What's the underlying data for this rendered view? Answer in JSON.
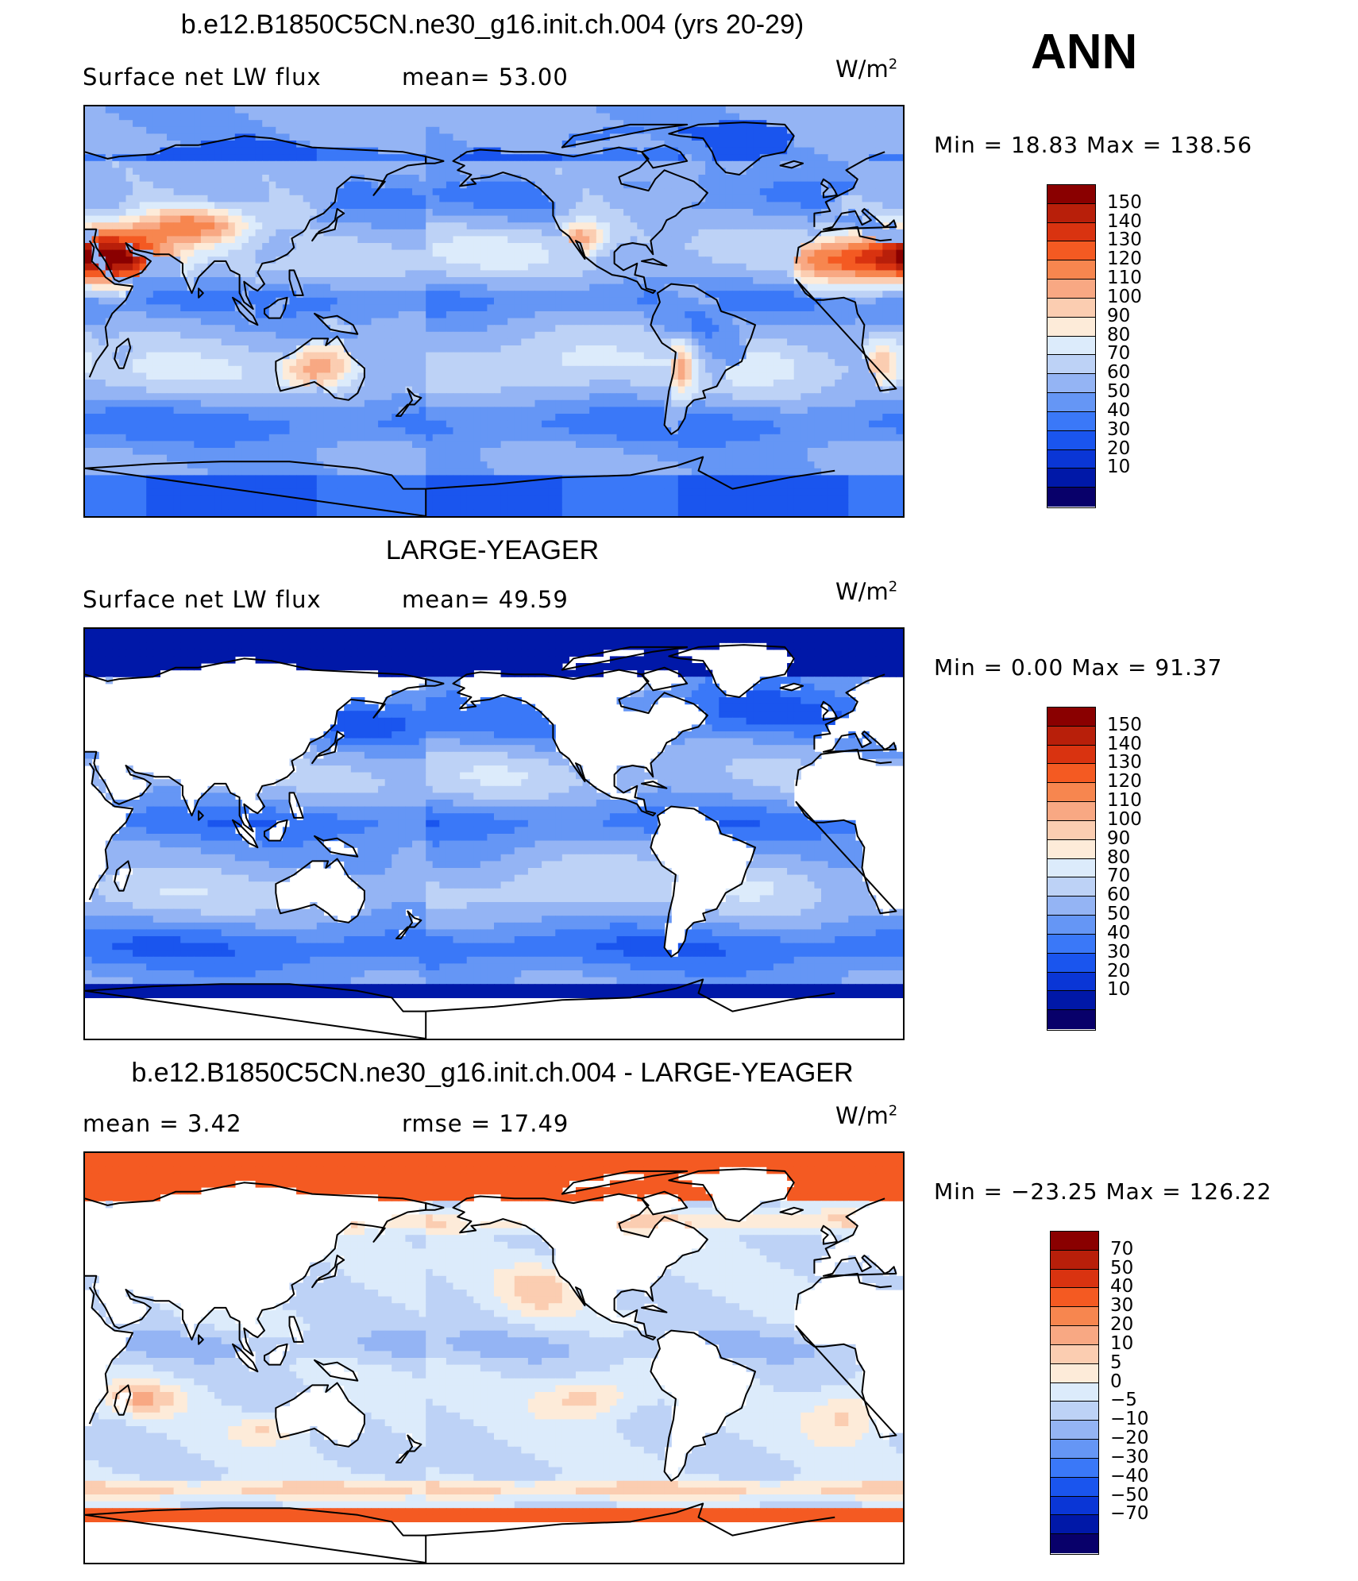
{
  "season": "ANN",
  "colormap_abs": [
    "#08006a",
    "#0018a8",
    "#0a36d6",
    "#1a55ee",
    "#3a78f8",
    "#6596f5",
    "#94b4f4",
    "#bdd2f6",
    "#dcebfb",
    "#fdebd9",
    "#fbcdb1",
    "#f8a883",
    "#f7864f",
    "#f45a22",
    "#d93310",
    "#b81f0a",
    "#8a0000"
  ],
  "colormap_diff": [
    "#08006a",
    "#0018a8",
    "#0a36d6",
    "#1a55ee",
    "#3a78f8",
    "#6596f5",
    "#94b4f4",
    "#bdd2f6",
    "#dcebfb",
    "#fdebd9",
    "#fbcdb1",
    "#f8a883",
    "#f7864f",
    "#f45a22",
    "#d93310",
    "#b81f0a",
    "#8a0000"
  ],
  "land_color": "#ffffff",
  "chart_data": [
    {
      "type": "heatmap",
      "title": "b.e12.B1850C5CN.ne30_g16.init.ch.004 (yrs 20-29)",
      "left_label": "Surface net LW flux",
      "center_label": "mean=   53.00",
      "units": "W/m",
      "units_sup": "2",
      "min_max": "Min =   18.83 Max  =  138.56",
      "colorbar_labels": [
        "150",
        "140",
        "130",
        "120",
        "110",
        "100",
        "90",
        "80",
        "70",
        "60",
        "50",
        "40",
        "30",
        "20",
        "10"
      ],
      "field_mode": "model"
    },
    {
      "type": "heatmap",
      "title": "LARGE-YEAGER",
      "left_label": "Surface net LW flux",
      "center_label": "mean=   49.59",
      "units": "W/m",
      "units_sup": "2",
      "min_max": "Min =    0.00 Max  =   91.37",
      "colorbar_labels": [
        "150",
        "140",
        "130",
        "120",
        "110",
        "100",
        "90",
        "80",
        "70",
        "60",
        "50",
        "40",
        "30",
        "20",
        "10"
      ],
      "field_mode": "obs"
    },
    {
      "type": "heatmap",
      "title": "b.e12.B1850C5CN.ne30_g16.init.ch.004 - LARGE-YEAGER",
      "left_label": "mean =     3.42",
      "center_label": "rmse =    17.49",
      "units": "W/m",
      "units_sup": "2",
      "min_max": "Min = −23.25  Max  =  126.22",
      "colorbar_labels": [
        "70",
        "50",
        "40",
        "30",
        "20",
        "10",
        "5",
        "0",
        "−5",
        "−10",
        "−20",
        "−30",
        "−40",
        "−50",
        "−70"
      ],
      "field_mode": "diff"
    }
  ]
}
